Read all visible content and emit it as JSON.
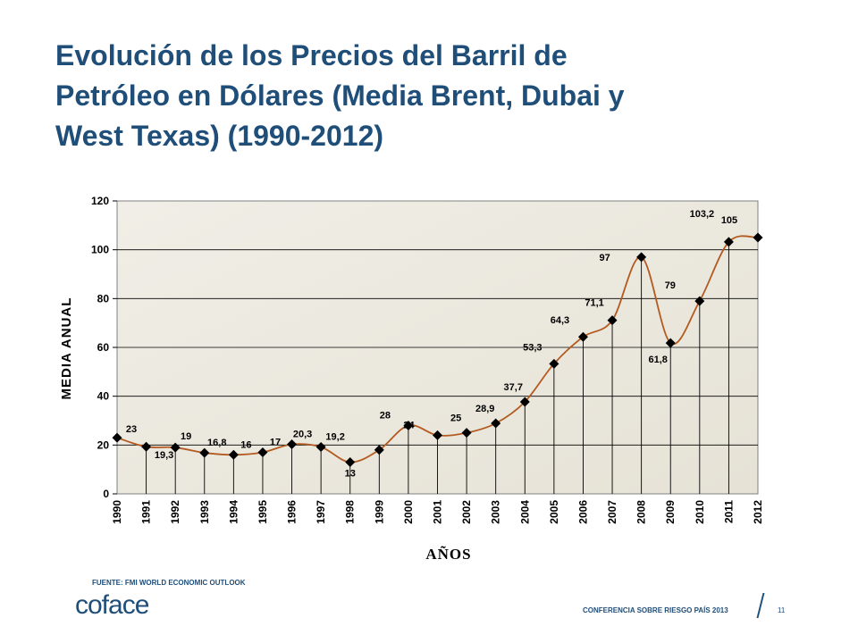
{
  "header": {
    "title_lines": [
      "Evolución de los Precios del Barril de",
      "Petróleo en Dólares (Media Brent, Dubai y",
      "West Texas) (1990-2012)"
    ]
  },
  "chart_data": {
    "type": "line",
    "xlabel": "AÑOS",
    "ylabel": "MEDIA ANUAL",
    "ylim": [
      0,
      120
    ],
    "yticks": [
      "0",
      "20",
      "40",
      "60",
      "80",
      "100",
      "120"
    ],
    "grid": true,
    "categories": [
      "1990",
      "1991",
      "1992",
      "1993",
      "1994",
      "1995",
      "1996",
      "1997",
      "1998",
      "1999",
      "2000",
      "2001",
      "2002",
      "2003",
      "2004",
      "2005",
      "2006",
      "2007",
      "2008",
      "2009",
      "2010",
      "2011",
      "2012"
    ],
    "values": [
      23,
      19.3,
      19,
      16.8,
      16,
      17,
      20.3,
      19.2,
      13,
      18,
      28,
      24,
      25,
      28.9,
      37.7,
      53.3,
      64.3,
      71.1,
      97,
      61.8,
      79,
      103.2,
      105
    ],
    "data_labels": [
      "23",
      "19,3",
      "19",
      "16,8",
      "16",
      "17",
      "20,3",
      "19,2",
      "13",
      "",
      "28",
      "24",
      "25",
      "28,9",
      "37,7",
      "53,3",
      "64,3",
      "71,1",
      "97",
      "61,8",
      "79",
      "103,2",
      "105"
    ],
    "line_color": "#b35a1f",
    "marker_color": "#000000"
  },
  "footer": {
    "source": "FUENTE: FMI WORLD ECONOMIC OUTLOOK",
    "logo": "coface",
    "conference": "CONFERENCIA SOBRE RIESGO PAÍS 2013",
    "page_number": "11"
  },
  "colors": {
    "brand": "#1f4e79",
    "plot_background": "#ebe8de"
  }
}
